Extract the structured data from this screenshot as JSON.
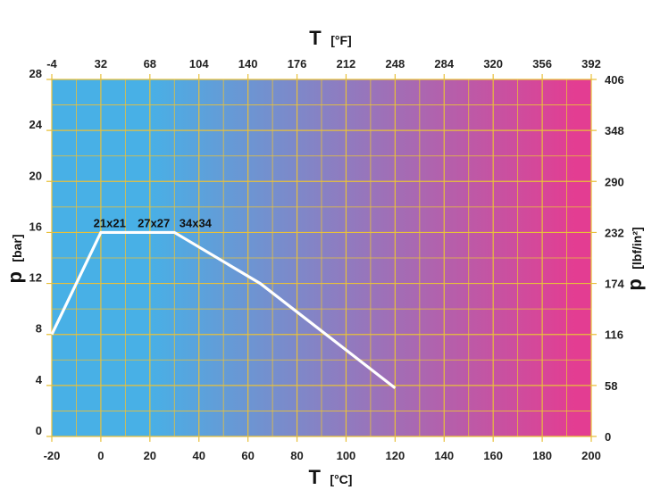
{
  "chart_data": {
    "type": "line",
    "gradient_colors": [
      "#48b0e6",
      "#e33d92"
    ],
    "grid_color": "#e8c03a",
    "line_color": "#ffffff",
    "x_bottom": {
      "symbol": "T",
      "unit": "[°C]",
      "range": [
        -20,
        200
      ],
      "ticks": [
        "-20",
        "0",
        "20",
        "40",
        "60",
        "80",
        "100",
        "120",
        "140",
        "160",
        "180",
        "200"
      ]
    },
    "x_top": {
      "symbol": "T",
      "unit": "[°F]",
      "ticks": [
        "-4",
        "32",
        "68",
        "104",
        "140",
        "176",
        "212",
        "248",
        "284",
        "320",
        "356",
        "392"
      ]
    },
    "y_left": {
      "symbol": "p",
      "unit": "[bar]",
      "range": [
        0,
        28
      ],
      "ticks": [
        "0",
        "4",
        "8",
        "12",
        "16",
        "20",
        "24",
        "28"
      ]
    },
    "y_right": {
      "symbol": "p",
      "unit": "[lbf/in²]",
      "ticks": [
        "0",
        "58",
        "116",
        "174",
        "232",
        "290",
        "348",
        "406"
      ]
    },
    "grid": true,
    "series": [
      {
        "x": [
          -20,
          0,
          30,
          65,
          120
        ],
        "y": [
          8,
          16,
          16,
          12,
          3.8
        ]
      }
    ],
    "annotations": [
      {
        "text": "21x21",
        "x": -3,
        "y": 16.4
      },
      {
        "text": "27x27",
        "x": 15,
        "y": 16.4
      },
      {
        "text": "34x34",
        "x": 32,
        "y": 16.4
      }
    ]
  }
}
